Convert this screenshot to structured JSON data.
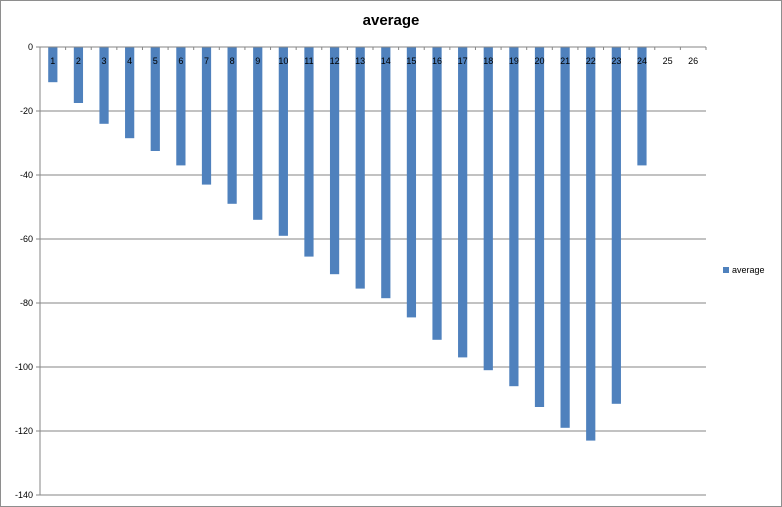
{
  "chart_data": {
    "type": "bar",
    "title": "average",
    "xlabel": "",
    "ylabel": "",
    "categories": [
      "1",
      "2",
      "3",
      "4",
      "5",
      "6",
      "7",
      "8",
      "9",
      "10",
      "11",
      "12",
      "13",
      "14",
      "15",
      "16",
      "17",
      "18",
      "19",
      "20",
      "21",
      "22",
      "23",
      "24",
      "25",
      "26"
    ],
    "series": [
      {
        "name": "average",
        "values": [
          -11,
          -17.5,
          -24,
          -28.5,
          -32.5,
          -37,
          -43,
          -49,
          -54,
          -59,
          -65.5,
          -71,
          -75.5,
          -78.5,
          -84.5,
          -91.5,
          -97,
          -101,
          -106,
          -112.5,
          -119,
          -123,
          -111.5,
          -37,
          null,
          null
        ],
        "color": "#4f81bd"
      }
    ],
    "ylim": [
      -140,
      0
    ],
    "yticks": [
      0,
      -20,
      -40,
      -60,
      -80,
      -100,
      -120,
      -140
    ],
    "grid": true,
    "legend_position": "right"
  }
}
